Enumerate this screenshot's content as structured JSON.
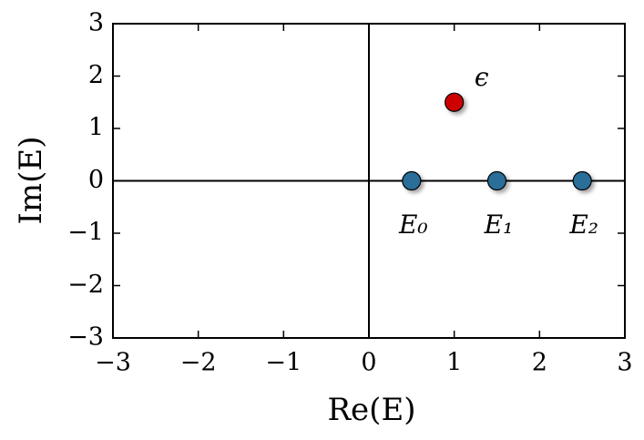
{
  "chart_data": {
    "type": "scatter",
    "x_label": "Re(E)",
    "y_label": "Im(E)",
    "x": [
      0.5,
      1.5,
      2.5,
      1.0
    ],
    "y": [
      0,
      0,
      0,
      1.5
    ],
    "point_labels": [
      "E₀",
      "E₁",
      "E₂",
      "ϵ"
    ],
    "colors": [
      "#2b6e99",
      "#2b6e99",
      "#2b6e99",
      "#cc0000"
    ],
    "xlim": [
      -3,
      3
    ],
    "ylim": [
      -3,
      3
    ],
    "xticks": [
      {
        "value": -3,
        "label": "−3"
      },
      {
        "value": -2,
        "label": "−2"
      },
      {
        "value": -1,
        "label": "−1"
      },
      0,
      1,
      2,
      3
    ],
    "yticks": [
      {
        "value": -3,
        "label": "−3"
      },
      {
        "value": -2,
        "label": "−2"
      },
      {
        "value": -1,
        "label": "−1"
      },
      0,
      1,
      2,
      3
    ],
    "zero_lines": true
  }
}
